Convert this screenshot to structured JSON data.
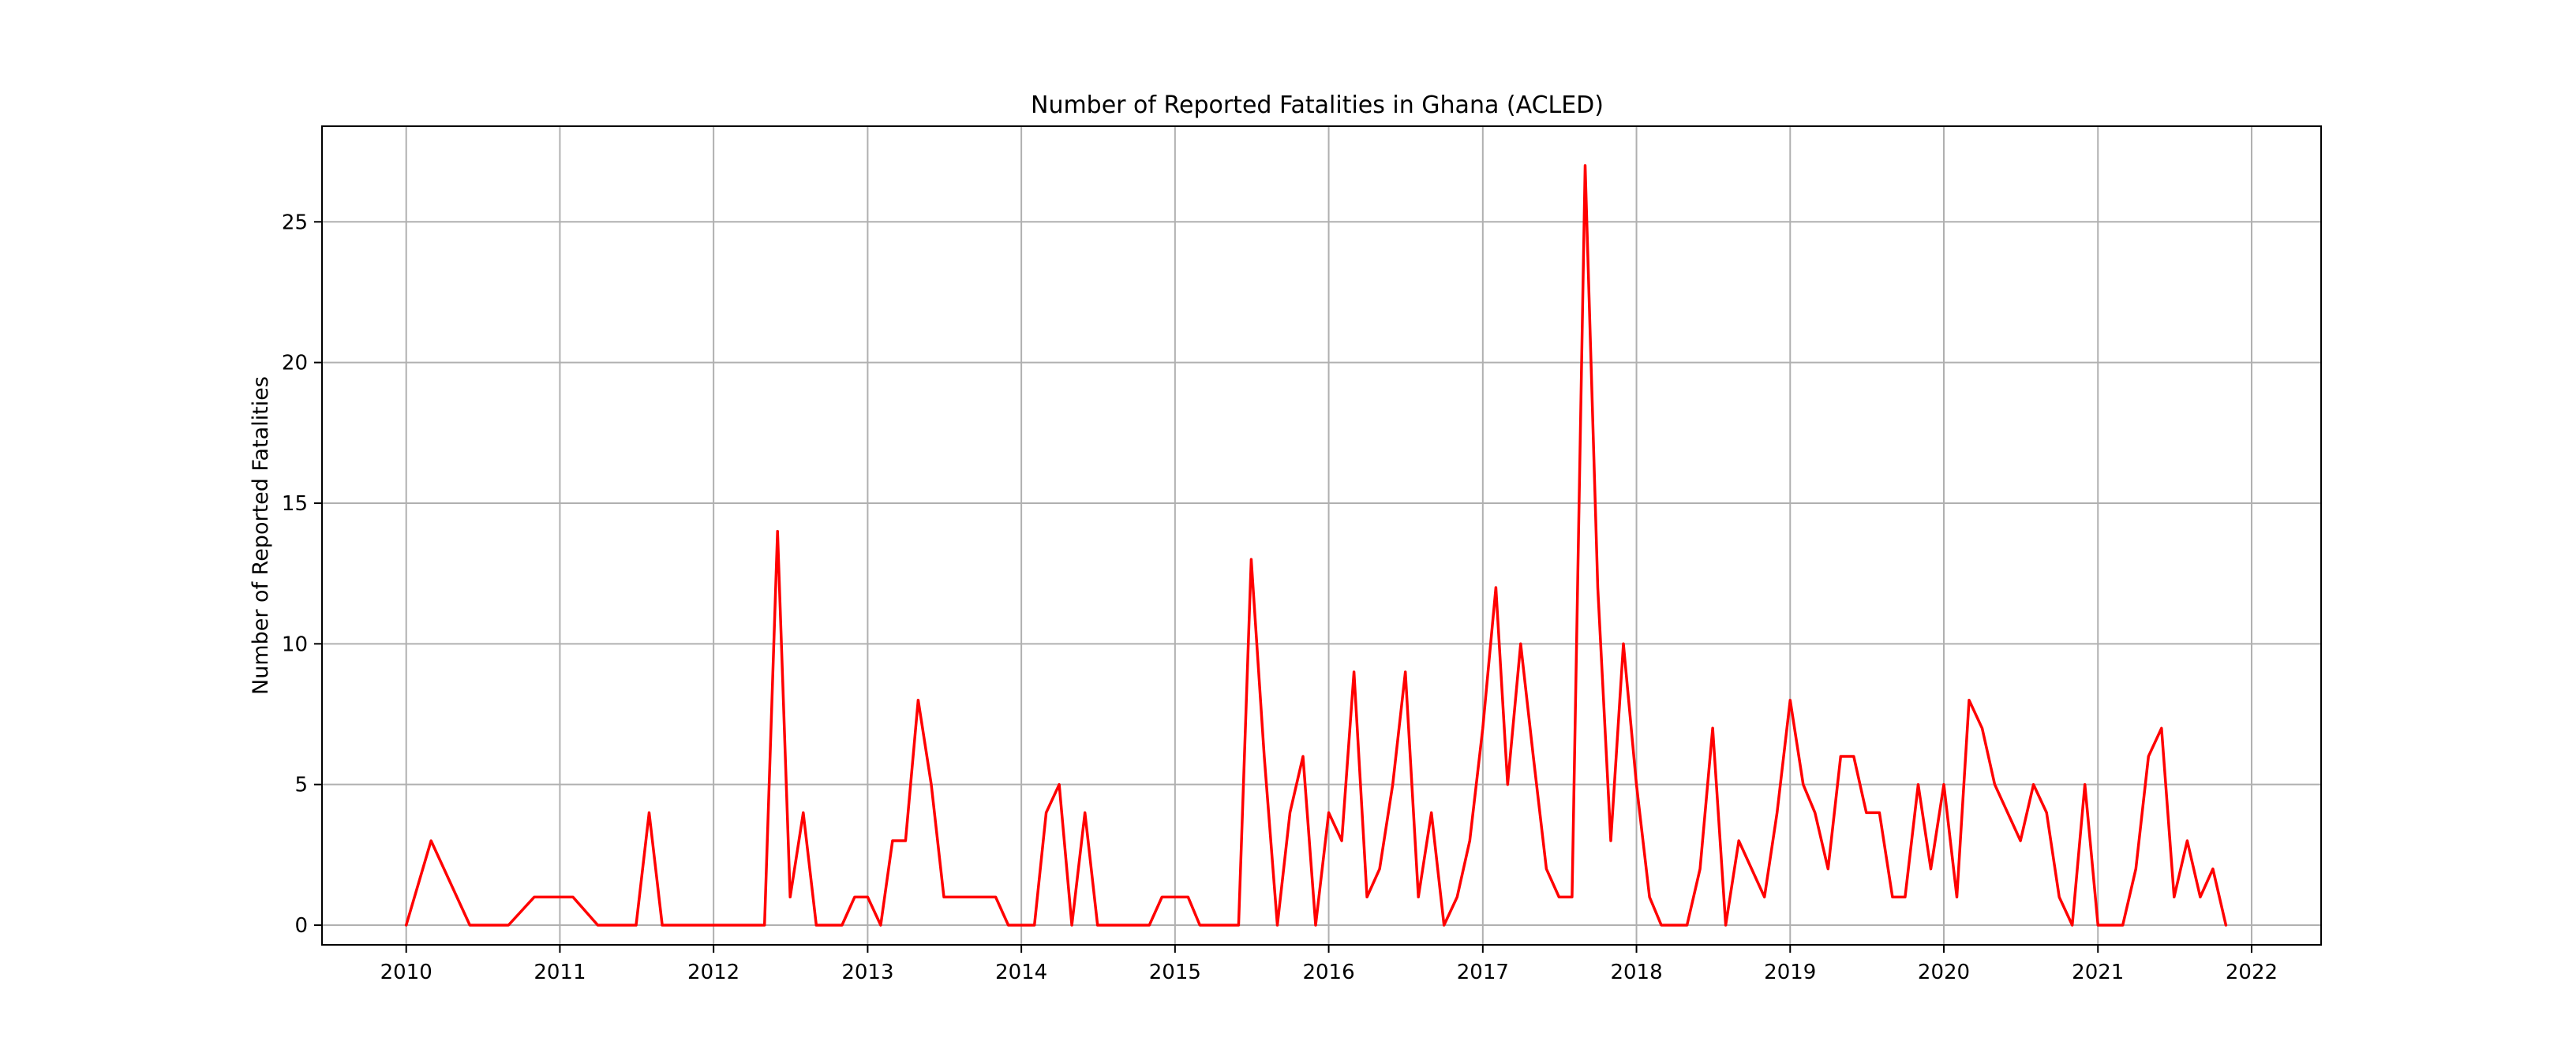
{
  "chart_data": {
    "type": "line",
    "title": "Number of Reported Fatalities in Ghana (ACLED)",
    "xlabel": "",
    "ylabel": "Number of Reported Fatalities",
    "x_ticks": [
      "2010",
      "2011",
      "2012",
      "2013",
      "2014",
      "2015",
      "2016",
      "2017",
      "2018",
      "2019",
      "2020",
      "2021",
      "2022"
    ],
    "y_ticks": [
      0,
      5,
      10,
      15,
      20,
      25
    ],
    "xlim": [
      "2009-06-15",
      "2022-06-15"
    ],
    "ylim": [
      -0.7,
      28.4
    ],
    "grid": true,
    "legend": "none",
    "series": [
      {
        "color": "#ff0000",
        "points": [
          [
            "2010-01-01",
            0
          ],
          [
            "2010-03-01",
            3
          ],
          [
            "2010-06-01",
            0
          ],
          [
            "2010-09-01",
            0
          ],
          [
            "2010-11-01",
            1
          ],
          [
            "2011-02-01",
            1
          ],
          [
            "2011-04-01",
            0
          ],
          [
            "2011-07-01",
            0
          ],
          [
            "2011-08-01",
            4
          ],
          [
            "2011-09-01",
            0
          ],
          [
            "2012-05-01",
            0
          ],
          [
            "2012-06-01",
            14
          ],
          [
            "2012-07-01",
            1
          ],
          [
            "2012-08-01",
            4
          ],
          [
            "2012-09-01",
            0
          ],
          [
            "2012-11-01",
            0
          ],
          [
            "2012-12-01",
            1
          ],
          [
            "2013-01-01",
            1
          ],
          [
            "2013-02-01",
            0
          ],
          [
            "2013-03-01",
            3
          ],
          [
            "2013-04-01",
            3
          ],
          [
            "2013-05-01",
            8
          ],
          [
            "2013-06-01",
            5
          ],
          [
            "2013-07-01",
            1
          ],
          [
            "2013-11-01",
            1
          ],
          [
            "2013-12-01",
            0
          ],
          [
            "2014-02-01",
            0
          ],
          [
            "2014-03-01",
            4
          ],
          [
            "2014-04-01",
            5
          ],
          [
            "2014-05-01",
            0
          ],
          [
            "2014-06-01",
            4
          ],
          [
            "2014-07-01",
            0
          ],
          [
            "2014-11-01",
            0
          ],
          [
            "2014-12-01",
            1
          ],
          [
            "2015-02-01",
            1
          ],
          [
            "2015-03-01",
            0
          ],
          [
            "2015-06-01",
            0
          ],
          [
            "2015-07-01",
            13
          ],
          [
            "2015-08-01",
            6
          ],
          [
            "2015-09-01",
            0
          ],
          [
            "2015-10-01",
            4
          ],
          [
            "2015-11-01",
            6
          ],
          [
            "2015-12-01",
            0
          ],
          [
            "2016-01-01",
            4
          ],
          [
            "2016-02-01",
            3
          ],
          [
            "2016-03-01",
            9
          ],
          [
            "2016-04-01",
            1
          ],
          [
            "2016-05-01",
            2
          ],
          [
            "2016-06-01",
            5
          ],
          [
            "2016-07-01",
            9
          ],
          [
            "2016-08-01",
            1
          ],
          [
            "2016-09-01",
            4
          ],
          [
            "2016-10-01",
            0
          ],
          [
            "2016-11-01",
            1
          ],
          [
            "2016-12-01",
            3
          ],
          [
            "2017-01-01",
            7
          ],
          [
            "2017-02-01",
            12
          ],
          [
            "2017-03-01",
            5
          ],
          [
            "2017-04-01",
            10
          ],
          [
            "2017-05-01",
            6
          ],
          [
            "2017-06-01",
            2
          ],
          [
            "2017-07-01",
            1
          ],
          [
            "2017-08-01",
            1
          ],
          [
            "2017-09-01",
            27
          ],
          [
            "2017-10-01",
            12
          ],
          [
            "2017-11-01",
            3
          ],
          [
            "2017-12-01",
            10
          ],
          [
            "2018-01-01",
            5
          ],
          [
            "2018-02-01",
            1
          ],
          [
            "2018-03-01",
            0
          ],
          [
            "2018-05-01",
            0
          ],
          [
            "2018-06-01",
            2
          ],
          [
            "2018-07-01",
            7
          ],
          [
            "2018-08-01",
            0
          ],
          [
            "2018-09-01",
            3
          ],
          [
            "2018-11-01",
            1
          ],
          [
            "2018-12-01",
            4
          ],
          [
            "2019-01-01",
            8
          ],
          [
            "2019-02-01",
            5
          ],
          [
            "2019-03-01",
            4
          ],
          [
            "2019-04-01",
            2
          ],
          [
            "2019-05-01",
            6
          ],
          [
            "2019-06-01",
            6
          ],
          [
            "2019-07-01",
            4
          ],
          [
            "2019-08-01",
            4
          ],
          [
            "2019-09-01",
            1
          ],
          [
            "2019-10-01",
            1
          ],
          [
            "2019-11-01",
            5
          ],
          [
            "2019-12-01",
            2
          ],
          [
            "2020-01-01",
            5
          ],
          [
            "2020-02-01",
            1
          ],
          [
            "2020-03-01",
            8
          ],
          [
            "2020-04-01",
            7
          ],
          [
            "2020-05-01",
            5
          ],
          [
            "2020-07-01",
            3
          ],
          [
            "2020-08-01",
            5
          ],
          [
            "2020-09-01",
            4
          ],
          [
            "2020-10-01",
            1
          ],
          [
            "2020-11-01",
            0
          ],
          [
            "2020-12-01",
            5
          ],
          [
            "2021-01-01",
            0
          ],
          [
            "2021-03-01",
            0
          ],
          [
            "2021-04-01",
            2
          ],
          [
            "2021-05-01",
            6
          ],
          [
            "2021-06-01",
            7
          ],
          [
            "2021-07-01",
            1
          ],
          [
            "2021-08-01",
            3
          ],
          [
            "2021-09-01",
            1
          ],
          [
            "2021-10-01",
            2
          ],
          [
            "2021-11-01",
            0
          ]
        ]
      }
    ]
  }
}
